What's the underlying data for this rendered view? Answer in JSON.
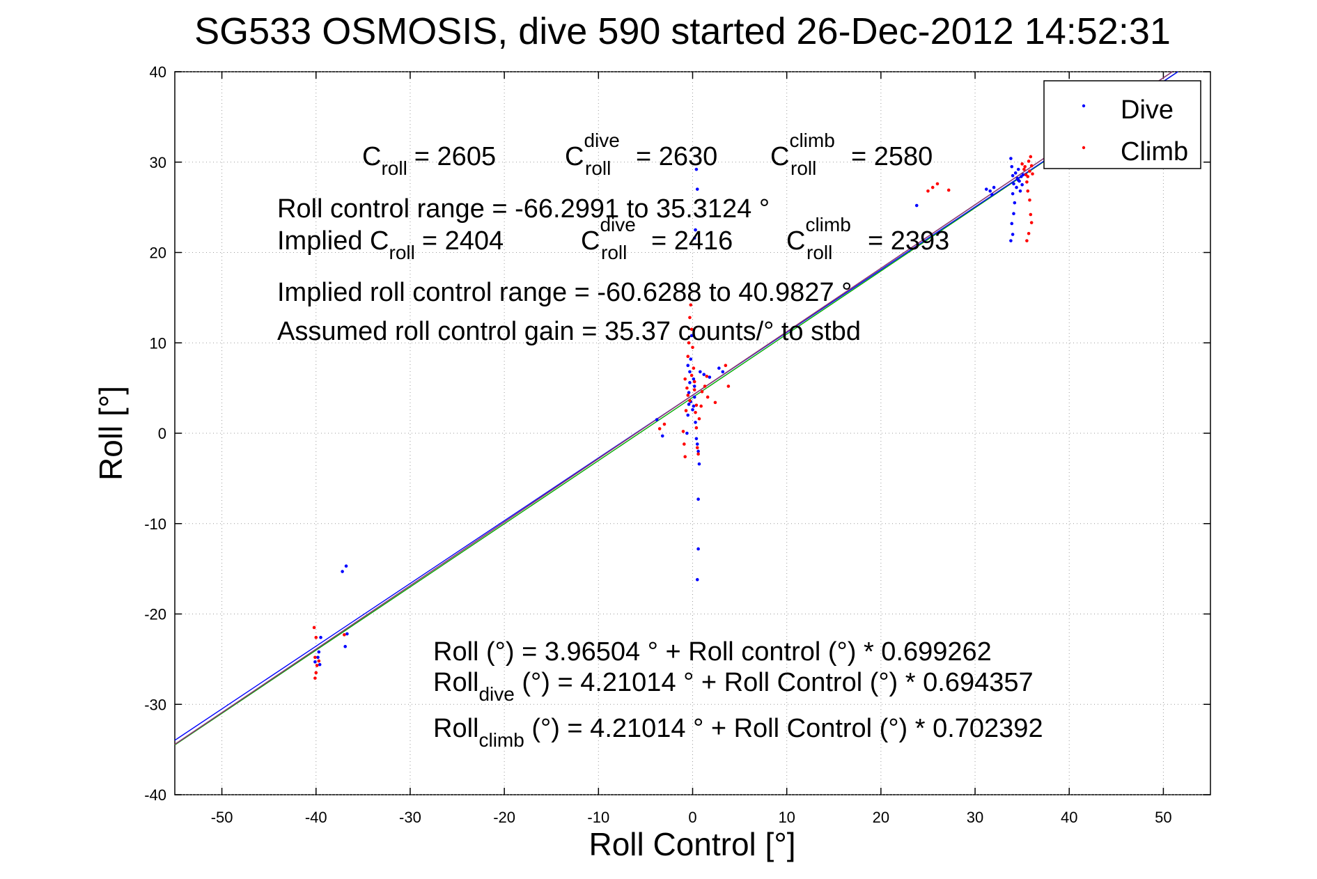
{
  "chart_data": {
    "type": "scatter",
    "title": "SG533 OSMOSIS, dive 590 started 26-Dec-2012 14:52:31",
    "xlabel": "Roll Control [°]",
    "ylabel": "Roll [°]",
    "xlim": [
      -55,
      55
    ],
    "ylim": [
      -40,
      40
    ],
    "xticks": [
      "-50",
      "-40",
      "-30",
      "-20",
      "-10",
      "0",
      "10",
      "20",
      "30",
      "40",
      "50"
    ],
    "yticks": [
      "-40",
      "-30",
      "-20",
      "-10",
      "0",
      "10",
      "20",
      "30",
      "40"
    ],
    "grid": true,
    "legend_position": "top-right",
    "legend": [
      {
        "name": "Dive",
        "color": "#0000ff"
      },
      {
        "name": "Climb",
        "color": "#ff0000"
      }
    ],
    "fit_lines": [
      {
        "intercept": 3.96504,
        "slope": 0.699262,
        "color": "#00aa00"
      },
      {
        "intercept": 4.21014,
        "slope": 0.694357,
        "color": "#0000ff"
      },
      {
        "intercept": 4.21014,
        "slope": 0.702392,
        "color": "#ff0000"
      },
      {
        "intercept": 4.21014,
        "slope": 0.702392,
        "color": "#7f3f7f"
      }
    ],
    "series": [
      {
        "name": "Dive",
        "color": "#0000ff",
        "points": [
          [
            -40.1,
            -25.3
          ],
          [
            -39.8,
            -24.8
          ],
          [
            -39.6,
            -25.6
          ],
          [
            -39.5,
            -22.6
          ],
          [
            -39.7,
            -24.2
          ],
          [
            -37.2,
            -15.3
          ],
          [
            -36.8,
            -14.7
          ],
          [
            -36.9,
            -23.6
          ],
          [
            -36.7,
            -22.2
          ],
          [
            -3.8,
            1.5
          ],
          [
            -3.2,
            -0.3
          ],
          [
            -0.6,
            0.0
          ],
          [
            -0.5,
            2.0
          ],
          [
            -0.4,
            4.5
          ],
          [
            -0.3,
            6.8
          ],
          [
            -0.2,
            8.2
          ],
          [
            -0.5,
            7.5
          ],
          [
            -0.1,
            10.8
          ],
          [
            0.1,
            3.0
          ],
          [
            0.2,
            5.2
          ],
          [
            0.3,
            1.2
          ],
          [
            0.4,
            -0.6
          ],
          [
            0.5,
            -1.2
          ],
          [
            0.6,
            -2.0
          ],
          [
            0.7,
            -3.4
          ],
          [
            0.6,
            -7.3
          ],
          [
            0.6,
            -12.8
          ],
          [
            0.5,
            -16.2
          ],
          [
            0.4,
            29.2
          ],
          [
            0.5,
            27.0
          ],
          [
            0.3,
            22.5
          ],
          [
            0.2,
            21.6
          ],
          [
            0.8,
            6.8
          ],
          [
            1.2,
            6.5
          ],
          [
            1.8,
            6.2
          ],
          [
            2.8,
            7.2
          ],
          [
            3.2,
            6.8
          ],
          [
            -0.3,
            5.6
          ],
          [
            -0.2,
            3.5
          ],
          [
            0.0,
            2.6
          ],
          [
            0.2,
            4.0
          ],
          [
            0.1,
            6.0
          ],
          [
            -0.4,
            3.2
          ],
          [
            23.8,
            25.2
          ],
          [
            31.2,
            27.0
          ],
          [
            31.6,
            26.8
          ],
          [
            32.0,
            27.2
          ],
          [
            31.8,
            26.4
          ],
          [
            33.8,
            30.4
          ],
          [
            33.9,
            29.5
          ],
          [
            34.0,
            28.5
          ],
          [
            34.1,
            27.6
          ],
          [
            34.0,
            26.5
          ],
          [
            34.2,
            25.5
          ],
          [
            34.1,
            24.3
          ],
          [
            33.9,
            23.2
          ],
          [
            34.0,
            22.0
          ],
          [
            33.8,
            21.3
          ],
          [
            34.3,
            28.8
          ],
          [
            34.5,
            28.2
          ],
          [
            34.7,
            27.9
          ],
          [
            34.9,
            28.4
          ],
          [
            35.0,
            27.5
          ],
          [
            34.6,
            29.2
          ],
          [
            34.8,
            26.8
          ],
          [
            34.4,
            27.2
          ],
          [
            34.6,
            28.0
          ],
          [
            35.1,
            28.6
          ]
        ]
      },
      {
        "name": "Climb",
        "color": "#ff0000",
        "points": [
          [
            -40.2,
            -21.5
          ],
          [
            -40.0,
            -22.6
          ],
          [
            -40.1,
            -24.8
          ],
          [
            -39.9,
            -25.7
          ],
          [
            -40.0,
            -26.5
          ],
          [
            -40.1,
            -27.1
          ],
          [
            -39.7,
            -25.2
          ],
          [
            -37.0,
            -22.3
          ],
          [
            -3.5,
            0.5
          ],
          [
            -3.0,
            1.0
          ],
          [
            -1.0,
            0.2
          ],
          [
            -0.9,
            -1.2
          ],
          [
            -0.8,
            -2.6
          ],
          [
            -0.7,
            2.5
          ],
          [
            -0.6,
            5.0
          ],
          [
            -0.5,
            8.5
          ],
          [
            -0.4,
            10.0
          ],
          [
            -0.3,
            12.8
          ],
          [
            -0.2,
            14.2
          ],
          [
            -0.1,
            11.5
          ],
          [
            0.0,
            9.5
          ],
          [
            0.1,
            7.2
          ],
          [
            0.2,
            4.8
          ],
          [
            0.3,
            2.3
          ],
          [
            0.4,
            0.6
          ],
          [
            0.5,
            -1.6
          ],
          [
            0.6,
            -2.3
          ],
          [
            -0.5,
            4.2
          ],
          [
            -0.3,
            3.6
          ],
          [
            -0.1,
            6.4
          ],
          [
            0.2,
            5.7
          ],
          [
            0.4,
            3.1
          ],
          [
            1.0,
            4.6
          ],
          [
            1.3,
            5.2
          ],
          [
            1.5,
            6.3
          ],
          [
            1.6,
            4.0
          ],
          [
            2.4,
            3.4
          ],
          [
            3.5,
            7.5
          ],
          [
            3.8,
            5.2
          ],
          [
            -0.8,
            6.0
          ],
          [
            0.7,
            1.6
          ],
          [
            0.9,
            3.0
          ],
          [
            25.0,
            26.8
          ],
          [
            25.5,
            27.2
          ],
          [
            26.0,
            27.6
          ],
          [
            27.2,
            26.9
          ],
          [
            35.0,
            29.8
          ],
          [
            35.2,
            29.2
          ],
          [
            35.4,
            28.6
          ],
          [
            35.5,
            27.8
          ],
          [
            35.6,
            26.8
          ],
          [
            35.8,
            25.8
          ],
          [
            35.9,
            24.2
          ],
          [
            36.0,
            23.3
          ],
          [
            35.7,
            22.1
          ],
          [
            35.5,
            21.3
          ],
          [
            35.9,
            30.6
          ],
          [
            35.7,
            30.1
          ],
          [
            35.3,
            29.5
          ],
          [
            35.8,
            29.0
          ],
          [
            36.1,
            28.7
          ],
          [
            36.0,
            29.6
          ],
          [
            35.6,
            28.4
          ]
        ]
      }
    ],
    "annotations": {
      "c_roll": {
        "base": "C",
        "sub": "roll",
        "value": "= 2605"
      },
      "c_roll_dive": {
        "base": "C",
        "sup": "dive",
        "sub": "roll",
        "value": "= 2630"
      },
      "c_roll_climb": {
        "base": "C",
        "sup": "climb",
        "sub": "roll",
        "value": "= 2580"
      },
      "range_line": "Roll control range = -66.2991 to 35.3124 °",
      "implied_prefix": "Implied C",
      "implied_sub": "roll",
      "implied_value": "= 2404",
      "implied_dive": {
        "base": "C",
        "sup": "dive",
        "sub": "roll",
        "value": "= 2416"
      },
      "implied_climb": {
        "base": "C",
        "sup": "climb",
        "sub": "roll",
        "value": "= 2393"
      },
      "implied_range_line": "Implied roll control range = -60.6288 to 40.9827 °",
      "gain_line": "Assumed roll control gain = 35.37 counts/° to stbd",
      "fit_all": "Roll (°) = 3.96504 ° + Roll control (°) * 0.699262",
      "fit_dive_prefix": "Roll",
      "fit_dive_sub": "dive",
      "fit_dive_rest": " (°) = 4.21014 ° + Roll Control (°) * 0.694357",
      "fit_climb_prefix": "Roll",
      "fit_climb_sub": "climb",
      "fit_climb_rest": " (°) = 4.21014 ° + Roll Control (°) * 0.702392"
    }
  }
}
